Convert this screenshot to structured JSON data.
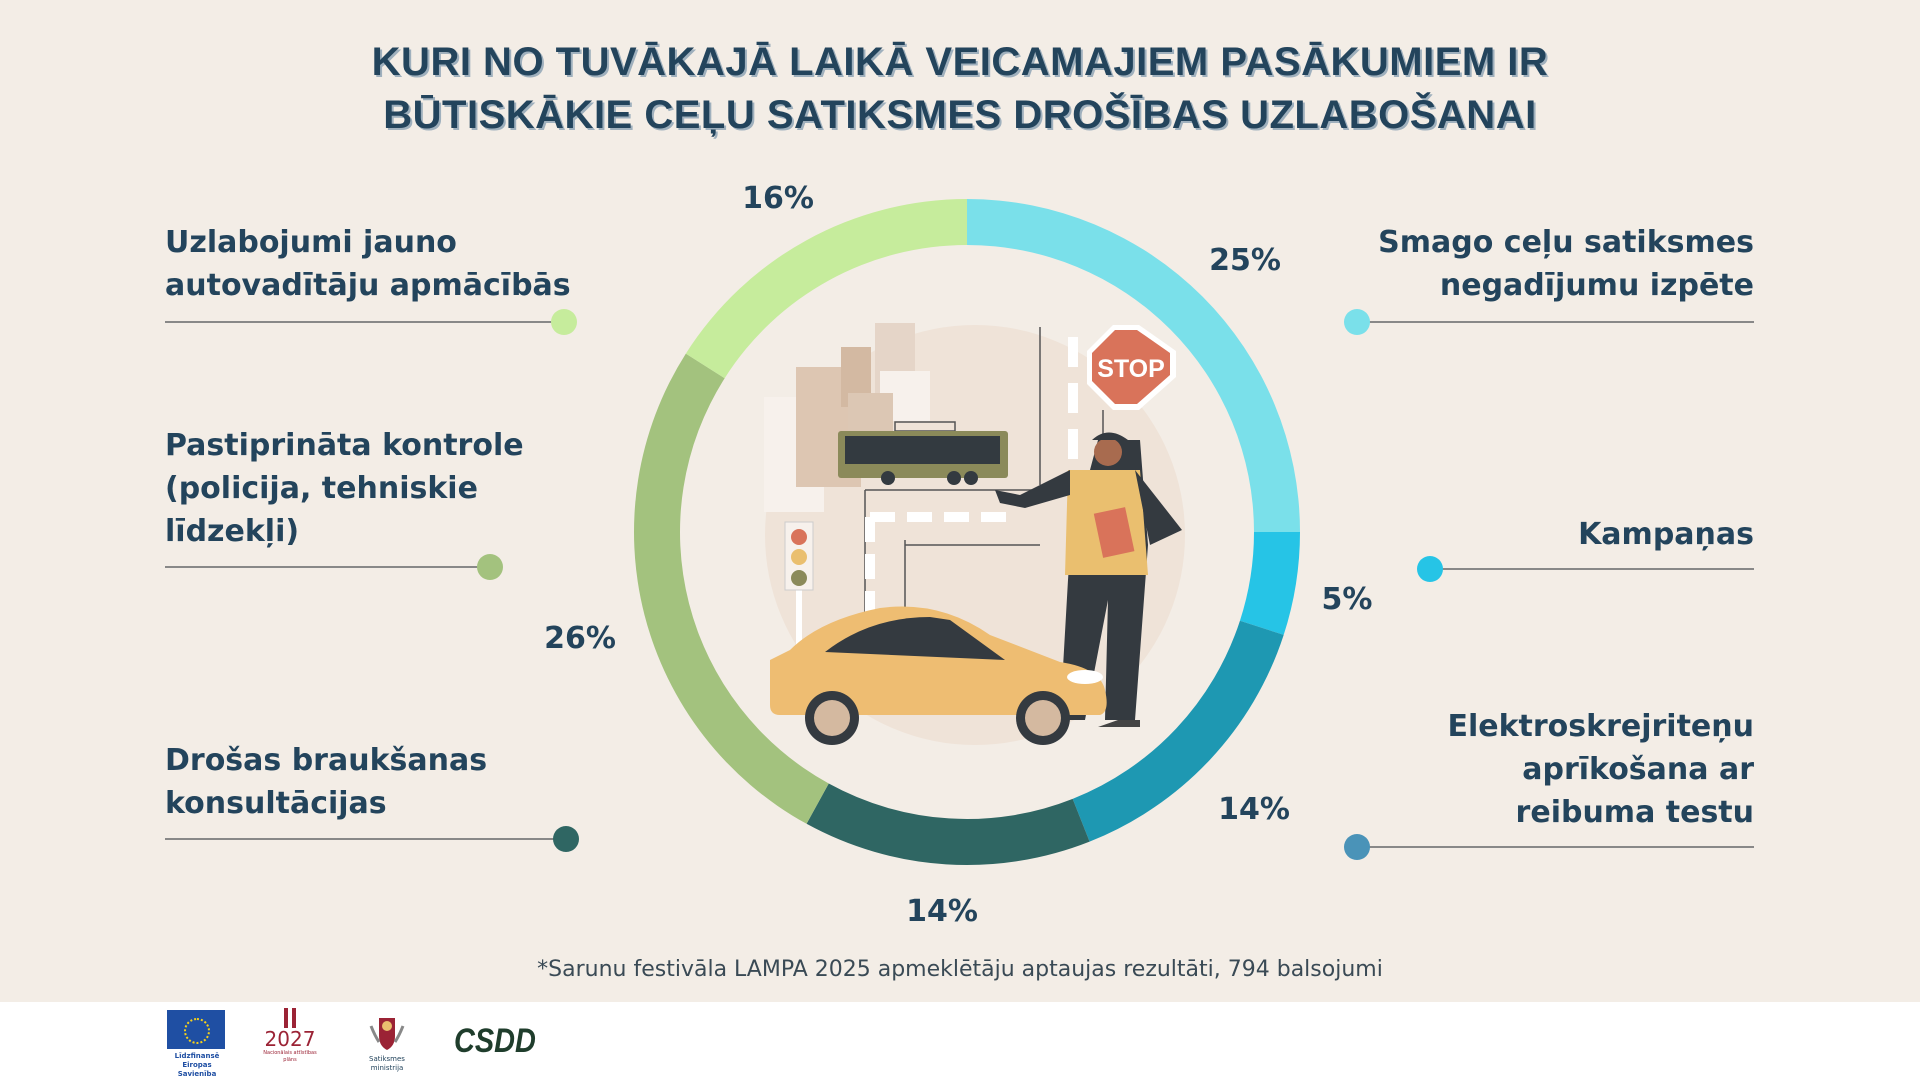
{
  "title": {
    "line1": "KURI NO TUVĀKAJĀ LAIKĀ VEICAMAJIEM PASĀKUMIEM IR",
    "line2": "BŪTISKĀKIE CEĻU SATIKSMES DROŠĪBAS UZLABOŠANAI"
  },
  "chart_data": {
    "type": "pie",
    "variant": "donut",
    "direction": "clockwise from top",
    "categories": [
      "Smago ceļu satiksmes negadījumu izpēte",
      "Kampaņas",
      "Elektroskrejriteņu aprīkošana ar reibuma testu",
      "Drošas braukšanas konsultācijas",
      "Pastiprināta kontrole (policija, tehniskie līdzekļi)",
      "Uzlabojumi jauno autovadītāju apmācībās"
    ],
    "values": [
      25,
      5,
      14,
      14,
      26,
      16
    ],
    "data_labels": [
      "25%",
      "5%",
      "14%",
      "14%",
      "26%",
      "16%"
    ],
    "colors": [
      "#7ae0ea",
      "#26c4e6",
      "#1e98b2",
      "#2f6663",
      "#a3c27e",
      "#c6ec9c"
    ],
    "legend_placement": "sides"
  },
  "legend": {
    "left": [
      {
        "lines": [
          "Uzlabojumi jauno",
          "autovadītāju apmācībās"
        ],
        "color": "#c6ec9c"
      },
      {
        "lines": [
          "Pastiprināta kontrole",
          "(policija, tehniskie",
          "līdzekļi)"
        ],
        "color": "#a3c27e"
      },
      {
        "lines": [
          "Drošas braukšanas",
          "konsultācijas"
        ],
        "color": "#2f6663"
      }
    ],
    "right": [
      {
        "lines": [
          "Smago ceļu satiksmes",
          "negadījumu izpēte"
        ],
        "color": "#7ae0ea"
      },
      {
        "lines": [
          "Kampaņas"
        ],
        "color": "#26c4e6"
      },
      {
        "lines": [
          "Elektroskrejriteņu",
          "aprīkošana ar",
          "reibuma testu"
        ],
        "color": "#4a93b8"
      }
    ]
  },
  "illustration": {
    "stop_sign": "STOP"
  },
  "footnote": "*Sarunu festivāla LAMPA 2025 apmeklētāju aptaujas rezultāti, 794 balsojumi",
  "footer": {
    "eu_logo": "Līdzfinansē Eiropas Savienība",
    "nap_logo_year": "2027",
    "nap_logo_text": "Nacionālais attīstības plāns",
    "ministry_logo": "Satiksmes ministrija",
    "csdd_logo": "CSDD"
  }
}
